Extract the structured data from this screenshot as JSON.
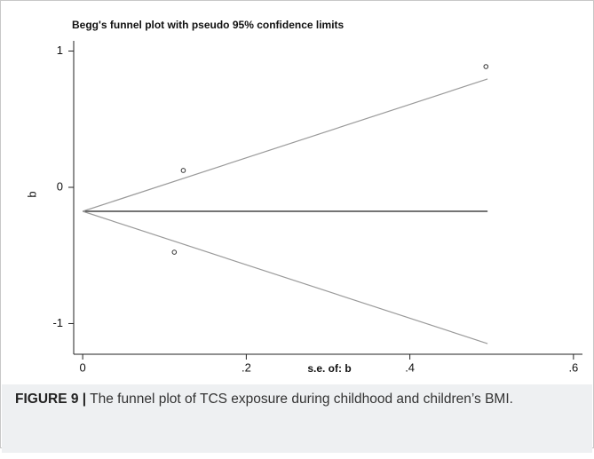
{
  "chart_data": {
    "type": "scatter",
    "title": "Begg's funnel plot with pseudo 95% confidence limits",
    "xlabel": "s.e. of: b",
    "ylabel": "b",
    "x": [
      0.493,
      0.123,
      0.112
    ],
    "values": [
      0.886,
      0.124,
      -0.476
    ],
    "color": "#333333",
    "lines": [
      {
        "x": [
          0,
          0.495
        ],
        "y": [
          -0.176,
          -0.176
        ],
        "color": "#222222"
      },
      {
        "x": [
          0,
          0.495
        ],
        "y": [
          -0.176,
          0.795
        ],
        "color": "#9a9a9a"
      },
      {
        "x": [
          0,
          0.495
        ],
        "y": [
          -0.176,
          -1.147
        ],
        "color": "#9a9a9a"
      }
    ],
    "xlim": [
      -0.011,
      0.611
    ],
    "ylim": [
      -1.225,
      1.075
    ],
    "xticks": [
      0,
      {
        "value": 0.2,
        "label": ".2"
      },
      {
        "value": 0.4,
        "label": ".4"
      },
      {
        "value": 0.6,
        "label": ".6"
      }
    ],
    "yticks": [
      -1,
      0,
      1
    ]
  },
  "caption": {
    "label": "FIGURE 9 |",
    "text": "The funnel plot of TCS exposure during childhood and children’s BMI."
  }
}
